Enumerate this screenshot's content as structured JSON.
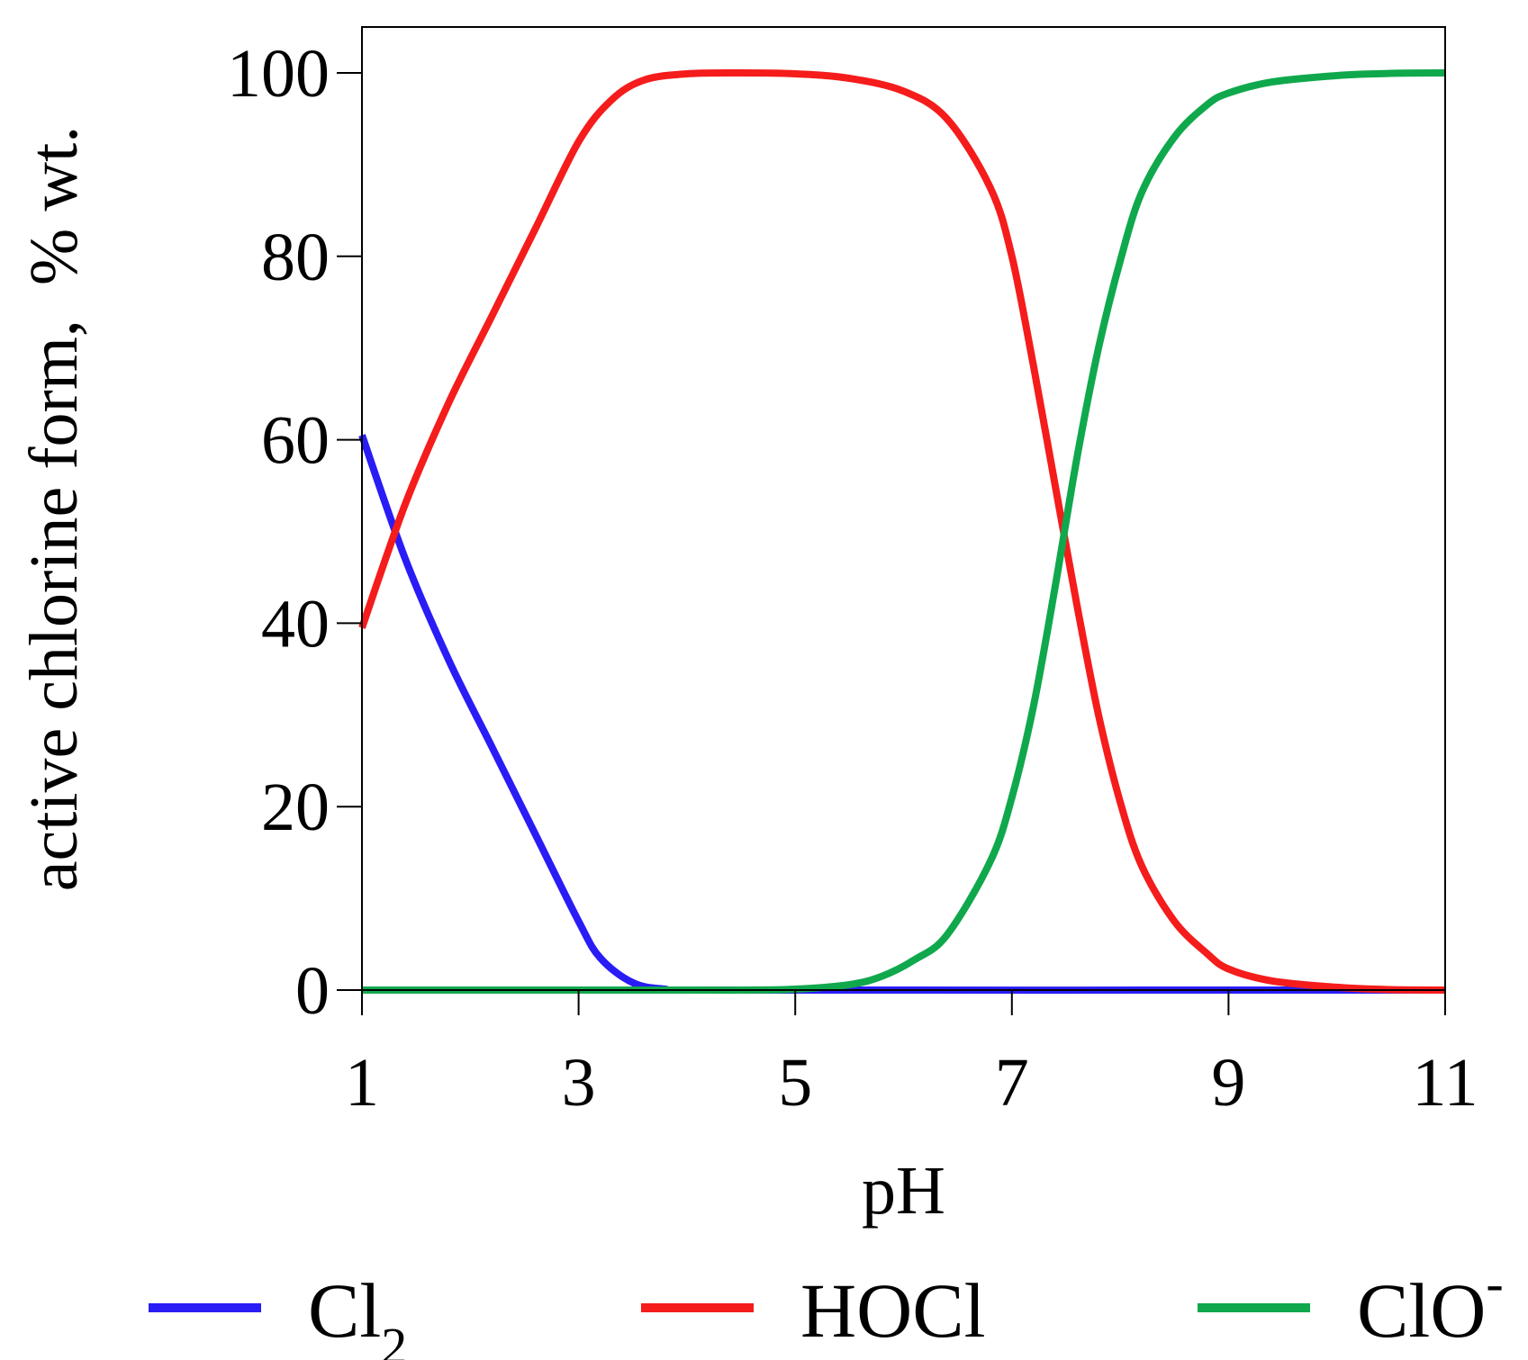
{
  "chart_data": {
    "type": "line",
    "title": "",
    "xlabel": "pH",
    "ylabel": "active chlorine form,  % wt.",
    "xlim": [
      1,
      11
    ],
    "ylim": [
      0,
      105
    ],
    "x_ticks": [
      1,
      3,
      5,
      7,
      9,
      11
    ],
    "y_ticks": [
      0,
      20,
      40,
      60,
      80,
      100
    ],
    "grid": false,
    "legend_position": "bottom",
    "series": [
      {
        "name": "Cl2",
        "label_main": "Cl",
        "label_sub": "2",
        "label_sup": "",
        "color": "#2a1cf5",
        "points": [
          [
            1,
            60.5
          ],
          [
            1.4,
            47
          ],
          [
            1.8,
            36
          ],
          [
            2.2,
            26.5
          ],
          [
            2.6,
            17
          ],
          [
            3.0,
            7.5
          ],
          [
            3.2,
            3.5
          ],
          [
            3.5,
            0.8
          ],
          [
            3.8,
            0.1
          ],
          [
            4.2,
            0
          ],
          [
            11,
            0
          ]
        ]
      },
      {
        "name": "HOCl",
        "label_main": "HOCl",
        "label_sub": "",
        "label_sup": "",
        "color": "#f51c1c",
        "points": [
          [
            1,
            39.5
          ],
          [
            1.4,
            53
          ],
          [
            1.8,
            64
          ],
          [
            2.2,
            73.5
          ],
          [
            2.6,
            83
          ],
          [
            3.0,
            92.5
          ],
          [
            3.3,
            97
          ],
          [
            3.6,
            99.2
          ],
          [
            4.0,
            99.9
          ],
          [
            4.5,
            100
          ],
          [
            5.0,
            99.9
          ],
          [
            5.5,
            99.4
          ],
          [
            6.0,
            98
          ],
          [
            6.4,
            95
          ],
          [
            6.8,
            87.5
          ],
          [
            7.0,
            80
          ],
          [
            7.2,
            68
          ],
          [
            7.4,
            55
          ],
          [
            7.6,
            42
          ],
          [
            7.8,
            30
          ],
          [
            8.0,
            20.5
          ],
          [
            8.2,
            13.5
          ],
          [
            8.5,
            7.5
          ],
          [
            8.8,
            4
          ],
          [
            9.0,
            2.3
          ],
          [
            9.4,
            1
          ],
          [
            10.0,
            0.3
          ],
          [
            10.5,
            0.05
          ],
          [
            11,
            0
          ]
        ]
      },
      {
        "name": "ClO-",
        "label_main": "ClO",
        "label_sub": "",
        "label_sup": "-",
        "color": "#10a84c",
        "points": [
          [
            1,
            0
          ],
          [
            4.0,
            0
          ],
          [
            4.5,
            0
          ],
          [
            5.0,
            0.1
          ],
          [
            5.5,
            0.6
          ],
          [
            5.8,
            1.5
          ],
          [
            6.1,
            3.3
          ],
          [
            6.4,
            6
          ],
          [
            6.8,
            14
          ],
          [
            7.0,
            21
          ],
          [
            7.2,
            31
          ],
          [
            7.4,
            44
          ],
          [
            7.6,
            58
          ],
          [
            7.8,
            70
          ],
          [
            8.0,
            79.5
          ],
          [
            8.2,
            87
          ],
          [
            8.5,
            93
          ],
          [
            8.8,
            96.5
          ],
          [
            9.0,
            97.8
          ],
          [
            9.4,
            99
          ],
          [
            10.0,
            99.7
          ],
          [
            10.5,
            99.95
          ],
          [
            11,
            100
          ]
        ]
      }
    ]
  }
}
